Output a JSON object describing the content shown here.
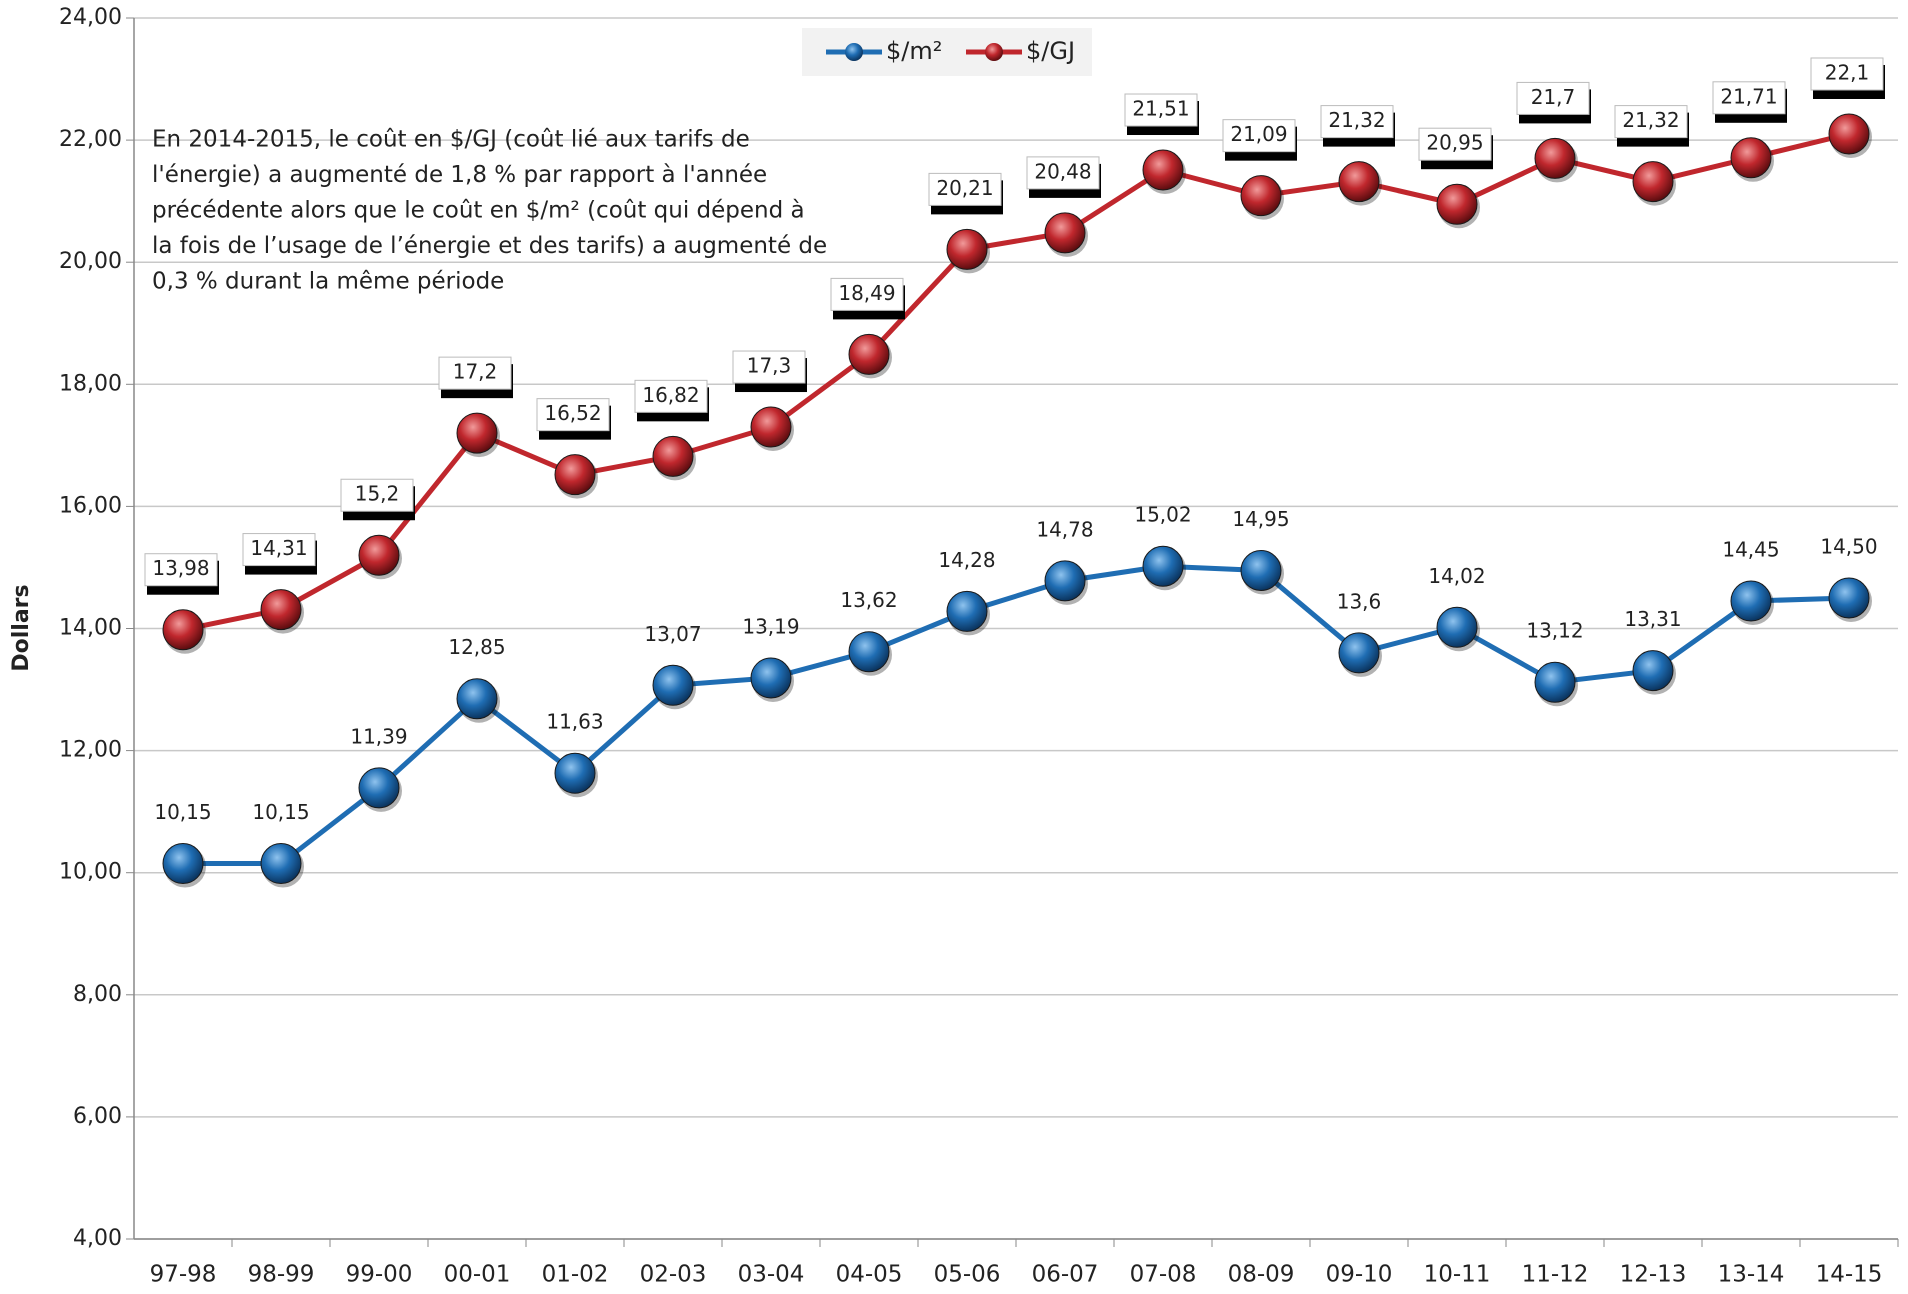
{
  "chart_data": {
    "type": "line",
    "y_axis_label": "Dollars",
    "annotation": [
      "En 2014-2015, le coût en $/GJ (coût lié aux tarifs de",
      "l'énergie) a augmenté de 1,8 % par rapport à l'année",
      "précédente alors que le coût en $/m² (coût qui dépend à",
      "la fois de l’usage de l’énergie et des tarifs) a augmenté de",
      "0,3 % durant la même période"
    ],
    "categories": [
      "97-98",
      "98-99",
      "99-00",
      "00-01",
      "01-02",
      "02-03",
      "03-04",
      "04-05",
      "05-06",
      "06-07",
      "07-08",
      "08-09",
      "09-10",
      "10-11",
      "11-12",
      "12-13",
      "13-14",
      "14-15"
    ],
    "series": [
      {
        "name": "$/m²",
        "color": "#1f6db3",
        "values": [
          10.15,
          10.15,
          11.39,
          12.85,
          11.63,
          13.07,
          13.19,
          13.62,
          14.28,
          14.78,
          15.02,
          14.95,
          13.6,
          14.02,
          13.12,
          13.31,
          14.45,
          14.5
        ],
        "value_labels": [
          "10,15",
          "10,15",
          "11,39",
          "12,85",
          "11,63",
          "13,07",
          "13,19",
          "13,62",
          "14,28",
          "14,78",
          "15,02",
          "14,95",
          "13,6",
          "14,02",
          "13,12",
          "13,31",
          "14,45",
          "14,50"
        ]
      },
      {
        "name": "$/GJ",
        "color": "#c0272d",
        "values": [
          13.98,
          14.31,
          15.2,
          17.2,
          16.52,
          16.82,
          17.3,
          18.49,
          20.21,
          20.48,
          21.51,
          21.09,
          21.32,
          20.95,
          21.7,
          21.32,
          21.71,
          22.1
        ],
        "value_labels": [
          "13,98",
          "14,31",
          "15,2",
          "17,2",
          "16,52",
          "16,82",
          "17,3",
          "18,49",
          "20,21",
          "20,48",
          "21,51",
          "21,09",
          "21,32",
          "20,95",
          "21,7",
          "21,32",
          "21,71",
          "22,1"
        ]
      }
    ],
    "ylim": [
      4,
      24
    ],
    "yticks": [
      {
        "value": 4,
        "label": "4,00"
      },
      {
        "value": 6,
        "label": "6,00"
      },
      {
        "value": 8,
        "label": "8,00"
      },
      {
        "value": 10,
        "label": "10,00"
      },
      {
        "value": 12,
        "label": "12,00"
      },
      {
        "value": 14,
        "label": "14,00"
      },
      {
        "value": 16,
        "label": "16,00"
      },
      {
        "value": 18,
        "label": "18,00"
      },
      {
        "value": 20,
        "label": "20,00"
      },
      {
        "value": 22,
        "label": "22,00"
      },
      {
        "value": 24,
        "label": "24,00"
      }
    ],
    "grid": true,
    "legend": "top"
  }
}
